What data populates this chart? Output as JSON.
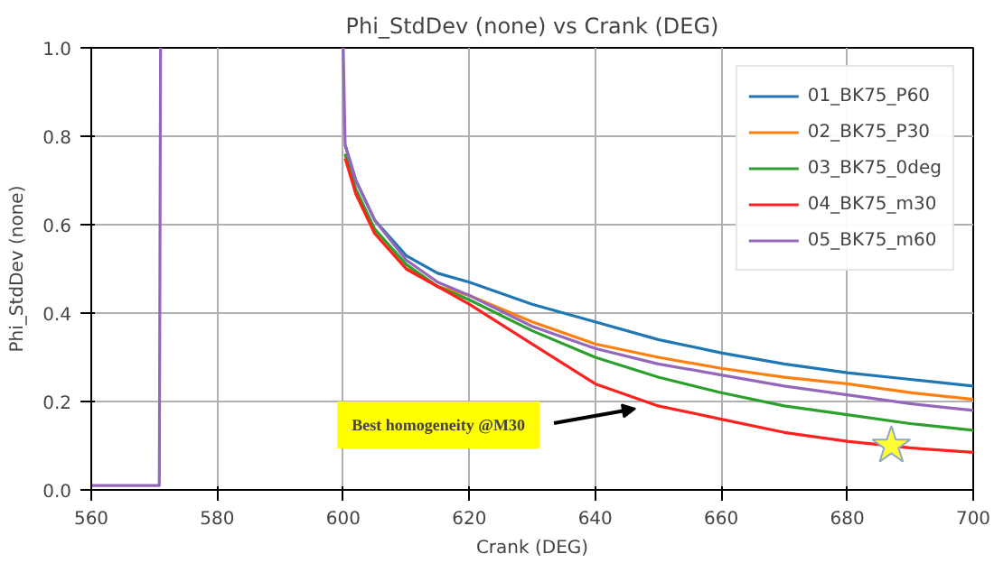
{
  "chart_data": {
    "type": "line",
    "title": "Phi_StdDev (none) vs Crank (DEG)",
    "xlabel": "Crank (DEG)",
    "ylabel": "Phi_StdDev (none)",
    "x": [
      560,
      570.8,
      571,
      585,
      600,
      600.3,
      602,
      605,
      610,
      615,
      620,
      630,
      640,
      650,
      660,
      670,
      680,
      690,
      700
    ],
    "series": [
      {
        "name": "01_BK75_P60",
        "color": "#1f77b4",
        "values": [
          null,
          null,
          null,
          null,
          null,
          0.78,
          0.7,
          0.61,
          0.53,
          0.49,
          0.47,
          0.42,
          0.38,
          0.34,
          0.31,
          0.285,
          0.265,
          0.25,
          0.235
        ]
      },
      {
        "name": "02_BK75_P30",
        "color": "#ff7f0e",
        "values": [
          null,
          null,
          null,
          null,
          null,
          0.76,
          0.67,
          0.58,
          0.5,
          0.46,
          0.44,
          0.38,
          0.33,
          0.3,
          0.275,
          0.255,
          0.24,
          0.22,
          0.205
        ]
      },
      {
        "name": "03_BK75_0deg",
        "color": "#2ca02c",
        "values": [
          null,
          null,
          null,
          null,
          null,
          0.76,
          0.68,
          0.59,
          0.51,
          0.46,
          0.43,
          0.36,
          0.3,
          0.255,
          0.22,
          0.19,
          0.17,
          0.15,
          0.135
        ]
      },
      {
        "name": "04_BK75_m30",
        "color": "#ff2020",
        "values": [
          null,
          null,
          null,
          null,
          null,
          0.75,
          0.67,
          0.58,
          0.5,
          0.46,
          0.42,
          0.33,
          0.24,
          0.19,
          0.16,
          0.13,
          0.11,
          0.095,
          0.085
        ]
      },
      {
        "name": "05_BK75_m60",
        "color": "#9467bd",
        "values": [
          0.01,
          0.01,
          1,
          null,
          1,
          0.78,
          0.7,
          0.61,
          0.52,
          0.47,
          0.44,
          0.37,
          0.32,
          0.285,
          0.26,
          0.235,
          0.215,
          0.195,
          0.18
        ]
      },
      {
        "type": "scatter",
        "marker": "star",
        "color": "#ffff33",
        "x": [
          687
        ],
        "values": [
          0.1
        ]
      }
    ],
    "annotations": [
      "Best homogeneity @M30"
    ],
    "xlim": [
      560,
      700
    ],
    "xticks": [
      560,
      580,
      600,
      620,
      640,
      660,
      680,
      700
    ],
    "ylim": [
      0,
      1
    ],
    "yticks": [
      {
        "value": 0,
        "label": "0.0"
      },
      {
        "value": 0.2,
        "label": "0.2"
      },
      {
        "value": 0.4,
        "label": "0.4"
      },
      {
        "value": 0.6,
        "label": "0.6"
      },
      {
        "value": 0.8,
        "label": "0.8"
      },
      {
        "value": 1,
        "label": "1.0"
      }
    ],
    "grid": true,
    "legend": "top right"
  }
}
